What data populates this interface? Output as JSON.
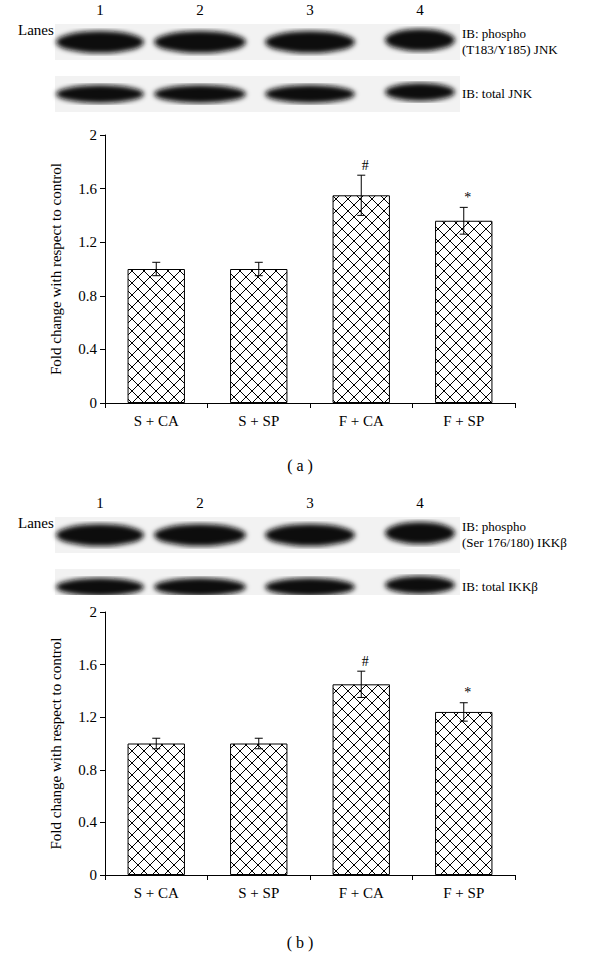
{
  "chart_data": [
    {
      "type": "bar",
      "caption": "( a )",
      "blot": {
        "lanes_label": "Lanes",
        "lanes": [
          "1",
          "2",
          "3",
          "4"
        ],
        "rows": [
          [
            "IB: phospho",
            "(T183/Y185) JNK"
          ],
          [
            "IB: total JNK"
          ]
        ]
      },
      "categories": [
        "S + CA",
        "S + SP",
        "F + CA",
        "F + SP"
      ],
      "values": [
        1.0,
        1.0,
        1.55,
        1.36
      ],
      "errors": [
        0.05,
        0.05,
        0.15,
        0.1
      ],
      "annotations": [
        null,
        null,
        "#",
        "*"
      ],
      "ylabel": "Fold change with respect to control",
      "color": "#000000",
      "ylim": [
        0,
        2
      ],
      "yticks": [
        0,
        0.4,
        0.8,
        1.2,
        1.6,
        2
      ],
      "grid": false
    },
    {
      "type": "bar",
      "caption": "( b )",
      "blot": {
        "lanes_label": "Lanes",
        "lanes": [
          "1",
          "2",
          "3",
          "4"
        ],
        "rows": [
          [
            "IB: phospho",
            "(Ser 176/180) IKKβ"
          ],
          [
            "IB: total IKKβ"
          ]
        ]
      },
      "categories": [
        "S + CA",
        "S + SP",
        "F + CA",
        "F + SP"
      ],
      "values": [
        1.0,
        1.0,
        1.45,
        1.24
      ],
      "errors": [
        0.04,
        0.04,
        0.1,
        0.07
      ],
      "annotations": [
        null,
        null,
        "#",
        "*"
      ],
      "ylabel": "Fold change with respect to control",
      "color": "#000000",
      "ylim": [
        0,
        2
      ],
      "yticks": [
        0,
        0.4,
        0.8,
        1.2,
        1.6,
        2
      ],
      "grid": false
    }
  ]
}
